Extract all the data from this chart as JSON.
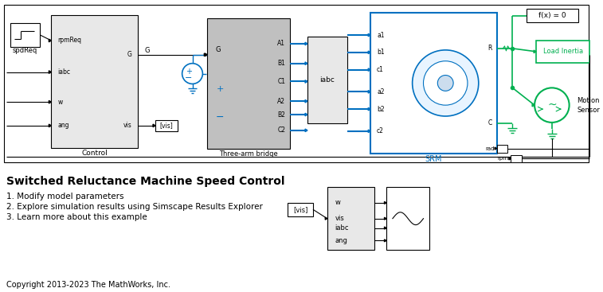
{
  "title": "Switched Reluctance Machine Speed Control",
  "subtitle_lines": [
    "1. Modify model parameters",
    "2. Explore simulation results using Simscape Results Explorer",
    "3. Learn more about this example"
  ],
  "copyright": "Copyright 2013-2023 The MathWorks, Inc.",
  "bg_color": "#ffffff",
  "black": "#000000",
  "green": "#00b050",
  "blue": "#0070c0",
  "med_gray": "#c0c0c0",
  "light_gray": "#e8e8e8"
}
